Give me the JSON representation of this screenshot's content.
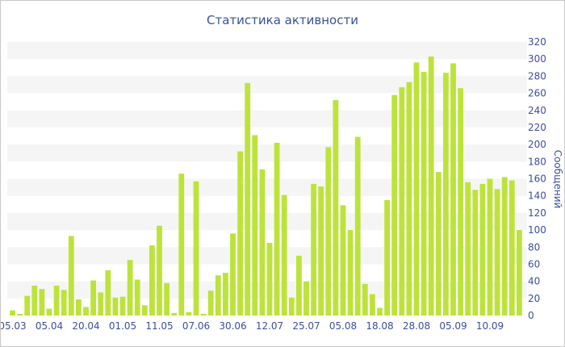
{
  "chart_data": {
    "type": "bar",
    "title": "Статистика активности",
    "xlabel": "",
    "ylabel": "Сообщений",
    "ylim": [
      0,
      320
    ],
    "y_ticks": [
      0,
      20,
      40,
      60,
      80,
      100,
      120,
      140,
      160,
      180,
      200,
      220,
      240,
      260,
      280,
      300,
      320
    ],
    "y_axis_position": "right",
    "grid": "horizontal-bands",
    "bar_color": "#bde33a",
    "text_color": "#3b4f9a",
    "x_tick_labels": [
      "05.03",
      "05.04",
      "20.04",
      "01.05",
      "11.05",
      "07.06",
      "30.06",
      "12.07",
      "25.07",
      "05.08",
      "18.08",
      "28.08",
      "05.09",
      "10.09"
    ],
    "x_tick_bar_index": [
      0,
      5,
      10,
      15,
      20,
      25,
      30,
      35,
      40,
      45,
      50,
      55,
      60,
      65
    ],
    "values": [
      6,
      2,
      23,
      35,
      31,
      8,
      35,
      30,
      93,
      19,
      10,
      41,
      27,
      53,
      21,
      22,
      65,
      42,
      12,
      82,
      105,
      38,
      3,
      166,
      4,
      157,
      2,
      29,
      47,
      50,
      96,
      192,
      272,
      211,
      171,
      85,
      202,
      141,
      21,
      70,
      40,
      154,
      151,
      197,
      252,
      129,
      100,
      209,
      37,
      25,
      9,
      135,
      258,
      267,
      273,
      296,
      285,
      303,
      168,
      284,
      295,
      266,
      156,
      147,
      154,
      160,
      148,
      162,
      158,
      100
    ]
  }
}
